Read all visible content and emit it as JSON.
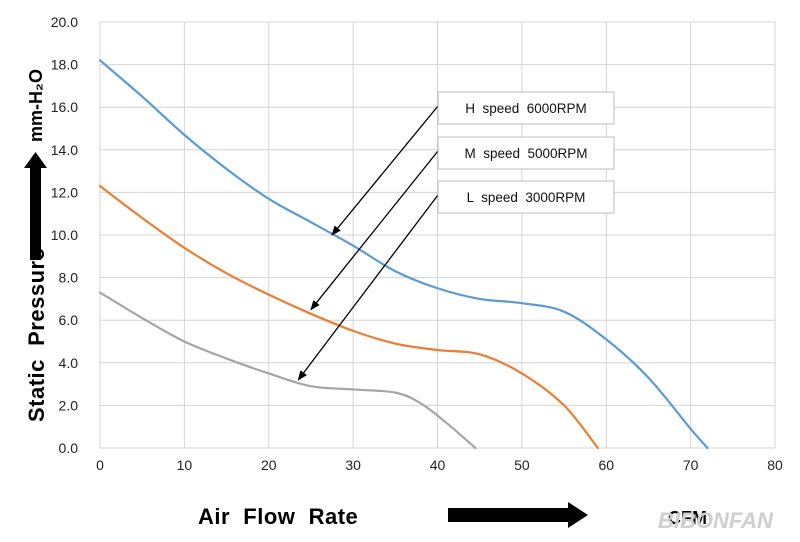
{
  "chart_data": {
    "type": "line",
    "title": "",
    "xlabel": "Air  Flow  Rate",
    "xunit": "CFM",
    "ylabel": "Static  Pressure",
    "yunit": "mm-H₂O",
    "xlim": [
      0,
      80
    ],
    "ylim": [
      0,
      20
    ],
    "x_ticks": [
      "0",
      "10",
      "20",
      "30",
      "40",
      "50",
      "60",
      "70",
      "80"
    ],
    "y_ticks": [
      "0.0",
      "2.0",
      "4.0",
      "6.0",
      "8.0",
      "10.0",
      "12.0",
      "14.0",
      "16.0",
      "18.0",
      "20.0"
    ],
    "grid": true,
    "series": [
      {
        "name": "H  speed  6000RPM",
        "color": "#5b9bd5",
        "x": [
          0,
          5,
          10,
          15,
          20,
          25,
          30,
          35,
          40,
          45,
          50,
          55,
          60,
          65,
          70,
          72
        ],
        "y": [
          18.2,
          16.5,
          14.7,
          13.1,
          11.7,
          10.6,
          9.5,
          8.3,
          7.5,
          7.0,
          6.8,
          6.4,
          5.1,
          3.3,
          0.9,
          0.0
        ]
      },
      {
        "name": "M  speed  5000RPM",
        "color": "#ed7d31",
        "x": [
          0,
          5,
          10,
          15,
          20,
          25,
          30,
          35,
          40,
          45,
          50,
          55,
          59
        ],
        "y": [
          12.3,
          10.8,
          9.4,
          8.2,
          7.2,
          6.3,
          5.5,
          4.9,
          4.6,
          4.4,
          3.5,
          2.0,
          0.0
        ]
      },
      {
        "name": "L  speed  3000RPM",
        "color": "#a5a5a5",
        "x": [
          0,
          5,
          10,
          15,
          20,
          25,
          30,
          35,
          38,
          41,
          44.5
        ],
        "y": [
          7.3,
          6.1,
          5.0,
          4.2,
          3.5,
          2.9,
          2.75,
          2.6,
          2.1,
          1.2,
          0.0
        ]
      }
    ],
    "callouts": [
      {
        "label": "H  speed  6000RPM",
        "target": [
          27.5,
          10.0
        ]
      },
      {
        "label": "M  speed  5000RPM",
        "target": [
          25.0,
          6.5
        ]
      },
      {
        "label": "L  speed  3000RPM",
        "target": [
          23.5,
          3.2
        ]
      }
    ]
  },
  "watermark": "BIBONFAN"
}
